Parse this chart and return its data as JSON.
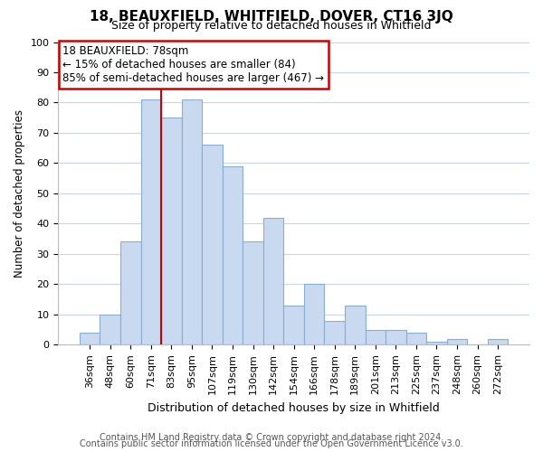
{
  "title": "18, BEAUXFIELD, WHITFIELD, DOVER, CT16 3JQ",
  "subtitle": "Size of property relative to detached houses in Whitfield",
  "xlabel": "Distribution of detached houses by size in Whitfield",
  "ylabel": "Number of detached properties",
  "footer_line1": "Contains HM Land Registry data © Crown copyright and database right 2024.",
  "footer_line2": "Contains public sector information licensed under the Open Government Licence v3.0.",
  "bar_labels": [
    "36sqm",
    "48sqm",
    "60sqm",
    "71sqm",
    "83sqm",
    "95sqm",
    "107sqm",
    "119sqm",
    "130sqm",
    "142sqm",
    "154sqm",
    "166sqm",
    "178sqm",
    "189sqm",
    "201sqm",
    "213sqm",
    "225sqm",
    "237sqm",
    "248sqm",
    "260sqm",
    "272sqm"
  ],
  "bar_values": [
    4,
    10,
    34,
    81,
    75,
    81,
    66,
    59,
    34,
    42,
    13,
    20,
    8,
    13,
    5,
    5,
    4,
    1,
    2,
    0,
    2
  ],
  "bar_color": "#c8d9f0",
  "bar_edge_color": "#8aadd4",
  "vline_x_idx": 3,
  "vline_color": "#cc0000",
  "annotation_text": "18 BEAUXFIELD: 78sqm\n← 15% of detached houses are smaller (84)\n85% of semi-detached houses are larger (467) →",
  "annotation_box_color": "white",
  "annotation_box_edge": "#cc0000",
  "ylim": [
    0,
    100
  ],
  "background_color": "#ffffff",
  "grid_color": "#c8d4e8",
  "title_fontsize": 11,
  "subtitle_fontsize": 9,
  "ylabel_fontsize": 8.5,
  "xlabel_fontsize": 9,
  "tick_fontsize": 8,
  "footer_fontsize": 7
}
